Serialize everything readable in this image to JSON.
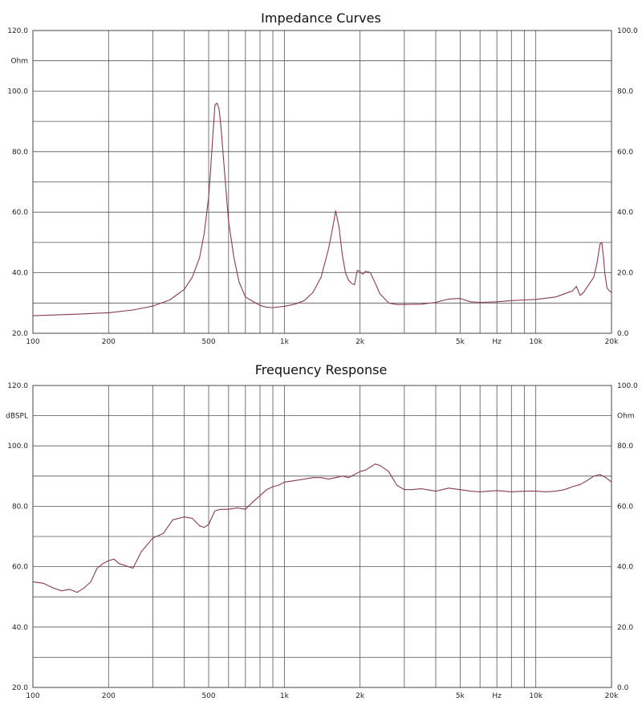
{
  "chart_data": [
    {
      "type": "line",
      "title": "Impedance Curves",
      "left_axis": {
        "unit": "Ohm",
        "ylim": [
          20,
          120
        ],
        "ticks": [
          "120.0",
          "100.0",
          "80.0",
          "60.0",
          "40.0",
          "20.0"
        ]
      },
      "right_axis": {
        "ylim": [
          0,
          100
        ],
        "ticks": [
          "100.0",
          "80.0",
          "60.0",
          "40.0",
          "20.0",
          "0.0"
        ]
      },
      "x_axis": {
        "scale": "log",
        "xlim": [
          100,
          20000
        ],
        "tick_labels": [
          {
            "value": 100,
            "label": "100"
          },
          {
            "value": 200,
            "label": "200"
          },
          {
            "value": 500,
            "label": "500"
          },
          {
            "value": 1000,
            "label": "1k"
          },
          {
            "value": 2000,
            "label": "2k"
          },
          {
            "value": 5000,
            "label": "5k"
          },
          {
            "value": 7000,
            "label": "Hz"
          },
          {
            "value": 10000,
            "label": "10k"
          },
          {
            "value": 20000,
            "label": "20k"
          }
        ],
        "gridlines": [
          100,
          200,
          300,
          400,
          500,
          600,
          700,
          800,
          900,
          1000,
          2000,
          3000,
          4000,
          5000,
          6000,
          7000,
          8000,
          9000,
          10000,
          20000
        ]
      },
      "grid": true,
      "line_color": "#8b3a4e",
      "series": [
        {
          "axis": "left",
          "x": [
            100,
            150,
            200,
            250,
            300,
            350,
            400,
            430,
            460,
            480,
            500,
            510,
            520,
            530,
            540,
            550,
            560,
            580,
            600,
            630,
            660,
            700,
            750,
            800,
            850,
            900,
            1000,
            1100,
            1200,
            1300,
            1400,
            1500,
            1550,
            1600,
            1650,
            1700,
            1750,
            1800,
            1850,
            1900,
            1950,
            2000,
            2050,
            2100,
            2150,
            2200,
            2300,
            2400,
            2600,
            2800,
            3000,
            3500,
            4000,
            4500,
            5000,
            5500,
            6000,
            7000,
            8000,
            9000,
            10000,
            12000,
            14000,
            14500,
            15000,
            15500,
            16000,
            17000,
            17500,
            18000,
            18300,
            18600,
            18800,
            19200,
            19600,
            20000
          ],
          "y": [
            25.8,
            26.3,
            26.8,
            27.7,
            29.0,
            31.0,
            34.5,
            38.5,
            45,
            53,
            65,
            75,
            86,
            95.5,
            96,
            94,
            88,
            72,
            57,
            45,
            37,
            32,
            30.5,
            29.2,
            28.6,
            28.5,
            28.9,
            29.6,
            30.8,
            33.5,
            38.5,
            48,
            54,
            60.5,
            55,
            46,
            40,
            37.5,
            36.5,
            36,
            40.8,
            40.3,
            39.5,
            40.5,
            40.3,
            40,
            36.5,
            33,
            30,
            29.5,
            29.5,
            29.6,
            30.2,
            31.3,
            31.5,
            30.4,
            30.2,
            30.4,
            30.8,
            31.0,
            31.2,
            32,
            34,
            35.5,
            32.5,
            33.5,
            35.3,
            38.5,
            43,
            49.5,
            50,
            45,
            40,
            35,
            34,
            33.5
          ]
        }
      ]
    },
    {
      "type": "line",
      "title": "Frequency Response",
      "left_axis": {
        "unit": "dBSPL",
        "ylim": [
          20,
          120
        ],
        "ticks": [
          "120.0",
          "100.0",
          "80.0",
          "60.0",
          "40.0",
          "20.0"
        ]
      },
      "right_axis": {
        "unit": "Ohm",
        "ylim": [
          0,
          100
        ],
        "ticks": [
          "100.0",
          "80.0",
          "60.0",
          "40.0",
          "20.0",
          "0.0"
        ]
      },
      "x_axis": {
        "scale": "log",
        "xlim": [
          100,
          20000
        ],
        "tick_labels": [
          {
            "value": 100,
            "label": "100"
          },
          {
            "value": 200,
            "label": "200"
          },
          {
            "value": 500,
            "label": "500"
          },
          {
            "value": 1000,
            "label": "1k"
          },
          {
            "value": 2000,
            "label": "2k"
          },
          {
            "value": 5000,
            "label": "5k"
          },
          {
            "value": 7000,
            "label": "Hz"
          },
          {
            "value": 10000,
            "label": "10k"
          },
          {
            "value": 20000,
            "label": "20k"
          }
        ],
        "gridlines": [
          100,
          200,
          300,
          400,
          500,
          600,
          700,
          800,
          900,
          1000,
          2000,
          3000,
          4000,
          5000,
          6000,
          7000,
          8000,
          9000,
          10000,
          20000
        ]
      },
      "grid": true,
      "line_color": "#8b3a4e",
      "series": [
        {
          "axis": "left",
          "x": [
            100,
            110,
            120,
            130,
            140,
            150,
            160,
            170,
            180,
            190,
            200,
            210,
            220,
            230,
            250,
            270,
            300,
            330,
            360,
            400,
            430,
            460,
            480,
            500,
            530,
            560,
            600,
            650,
            700,
            750,
            800,
            850,
            900,
            950,
            1000,
            1100,
            1200,
            1300,
            1400,
            1500,
            1600,
            1700,
            1800,
            1900,
            2000,
            2100,
            2200,
            2300,
            2400,
            2600,
            2800,
            3000,
            3200,
            3500,
            4000,
            4500,
            5000,
            5500,
            6000,
            7000,
            8000,
            9000,
            10000,
            11000,
            12000,
            13000,
            14000,
            15000,
            16000,
            17000,
            18000,
            19000,
            20000
          ],
          "y": [
            55,
            54.5,
            53,
            52,
            52.5,
            51.5,
            53,
            55,
            59.5,
            61,
            62,
            62.5,
            61,
            60.5,
            59.5,
            65,
            69.5,
            71,
            75.5,
            76.5,
            76,
            73.5,
            73,
            74,
            78.5,
            79,
            79,
            79.5,
            79,
            81.5,
            83.5,
            85.5,
            86.5,
            87,
            88,
            88.5,
            89,
            89.5,
            89.5,
            89,
            89.5,
            90,
            89.5,
            90.5,
            91.5,
            92,
            93,
            94,
            93.5,
            91.5,
            87,
            85.5,
            85.5,
            85.8,
            85,
            86,
            85.5,
            85,
            84.8,
            85.2,
            84.8,
            85,
            85,
            84.8,
            85,
            85.5,
            86.5,
            87.2,
            88.5,
            90,
            90.5,
            89.5,
            88
          ]
        }
      ]
    }
  ]
}
